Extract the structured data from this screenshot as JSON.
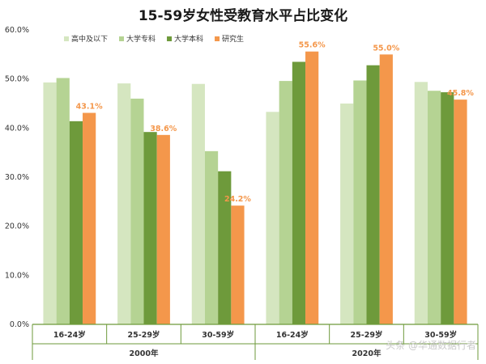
{
  "watermark": "头条 @华通数据行者",
  "chart_data": {
    "type": "bar",
    "title": "15-59岁女性受教育水平占比变化",
    "xlabel": "",
    "ylabel": "",
    "ylim": [
      0,
      60
    ],
    "yticks": [
      "0.0%",
      "10.0%",
      "20.0%",
      "30.0%",
      "40.0%",
      "50.0%",
      "60.0%"
    ],
    "grid": false,
    "legend_position": "top-left",
    "groups": [
      "2000年",
      "2020年"
    ],
    "categories": [
      "16-24岁",
      "25-29岁",
      "30-59岁",
      "16-24岁",
      "25-29岁",
      "30-59岁"
    ],
    "series": [
      {
        "name": "高中及以下",
        "color": "#d5e6c0",
        "values": [
          49.3,
          49.1,
          49.0,
          43.3,
          45.0,
          49.4
        ]
      },
      {
        "name": "大学专科",
        "color": "#b5d393",
        "values": [
          50.2,
          46.0,
          35.3,
          49.6,
          49.7,
          47.6
        ]
      },
      {
        "name": "大学本科",
        "color": "#6e9a3b",
        "values": [
          41.4,
          39.2,
          31.2,
          53.5,
          52.8,
          47.3
        ]
      },
      {
        "name": "研究生",
        "color": "#f4974b",
        "values": [
          43.1,
          38.6,
          24.2,
          55.6,
          55.0,
          45.8
        ]
      }
    ],
    "data_labels": [
      "43.1%",
      "38.6%",
      "24.2%",
      "55.6%",
      "55.0%",
      "45.8%"
    ],
    "label_color": "#f4974b",
    "axis_color": "#6e9a3b"
  }
}
